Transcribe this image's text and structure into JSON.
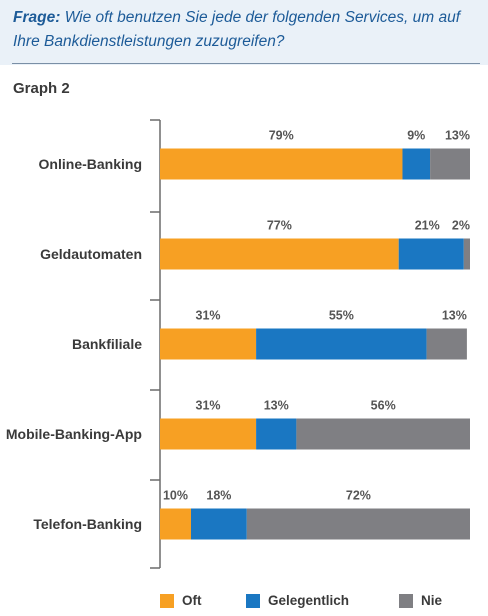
{
  "header": {
    "question_label": "Frage:",
    "question_text": "Wie oft benutzen Sie jede der folgenden Services, um auf Ihre Bankdienstleistungen zuzugreifen?"
  },
  "graph_title": "Graph 2",
  "colors": {
    "oft": "#f7a023",
    "gelegentlich": "#1a77c2",
    "nie": "#7f7f83"
  },
  "chart_data": {
    "type": "bar",
    "orientation": "horizontal",
    "stacked": true,
    "categories": [
      "Online-Banking",
      "Geldautomaten",
      "Bankfiliale",
      "Mobile-Banking-App",
      "Telefon-Banking"
    ],
    "series": [
      {
        "name": "Oft",
        "values": [
          79,
          77,
          31,
          31,
          10
        ],
        "labels": [
          "79%",
          "77%",
          "31%",
          "31%",
          "10%"
        ]
      },
      {
        "name": "Gelegentlich",
        "values": [
          9,
          21,
          55,
          13,
          18
        ],
        "labels": [
          "9%",
          "21%",
          "55%",
          "13%",
          "18%"
        ]
      },
      {
        "name": "Nie",
        "values": [
          13,
          2,
          13,
          56,
          72
        ],
        "labels": [
          "13%",
          "2%",
          "13%",
          "56%",
          "72%"
        ]
      }
    ],
    "xlim": [
      0,
      100
    ],
    "legend_position": "bottom",
    "grid": false
  },
  "legend": {
    "items": [
      {
        "label": "Oft",
        "color_key": "oft"
      },
      {
        "label": "Gelegentlich",
        "color_key": "gelegentlich"
      },
      {
        "label": "Nie",
        "color_key": "nie"
      }
    ]
  }
}
